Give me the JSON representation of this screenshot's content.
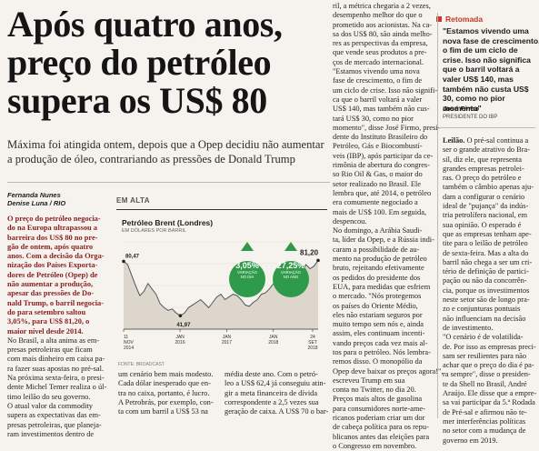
{
  "headline": [
    "Após quatro anos,",
    "preço do petróleo",
    "supera os US$ 80"
  ],
  "deck": [
    "Máxima foi atingida ontem, depois que a Opep decidiu não aumentar",
    "a produção de óleo, contrariando as pressões de Donald Trump"
  ],
  "byline": {
    "authors": [
      "Fernanda Nunes",
      "Denise Luna / RIO"
    ],
    "org": ""
  },
  "col1_lead": [
    "O preço do petróleo negocia-",
    "do na Europa ultrapassou a",
    "barreira dos US$ 80 no pre-",
    "gão de ontem, após quatro",
    "anos. Com a decisão da Orga-",
    "nização dos Países Exporta-",
    "dores de Petróleo (Opep) de",
    "não aumentar a produção,",
    "apesar das pressões de Do-",
    "nald Trump, o barril negocia-",
    "do para setembro saltou",
    "3,05%, para US$ 81,20, o",
    "maior nível desde 2014."
  ],
  "col1_body": [
    "No Brasil, a alta anima as em-",
    "presas petroleiras que ficam",
    "com mais dinheiro em caixa pa-",
    "ra fazer suas apostas no pré-sal.",
    "Na próxima sexta-feira, o presi-",
    "dente Michel Temer realiza o úl-",
    "timo leilão do seu governo.",
    "O atual valor da commodity",
    "supera as expectativas das em-",
    "presas petroleiras, que planeja-",
    "ram investimentos dentro de"
  ],
  "col2_bottom": [
    "um cenário bem mais modesto.",
    "Cada dólar inesperado que en-",
    "tra no caixa, portanto, é lucro.",
    "A Petrobrás, por exemplo, con-",
    "ta com um barril a US$ 53 na"
  ],
  "col3_bottom": [
    "média deste ano. Com o petró-",
    "leo a US$ 62,4 já conseguiu atin-",
    "gir a meta financeira de dívida",
    "correspondente a 2,5 vezes sua",
    "geração de caixa. A US$ 70 o bar-"
  ],
  "col3": [
    "ril, a métrica chegaria a 2 vezes,",
    "desempenho melhor do que o",
    "prometido aos acionistas. Na ca-",
    "sa dos US$ 80, são ainda melho-",
    "res as perspectivas da empresa,",
    "que vende seus produtos a pre-",
    "ços de mercado internacional.",
    "\"Estamos vivendo uma nova",
    "fase de crescimento, o fim de",
    "um ciclo de crise. Isso não signifi-",
    "ca que o barril voltará a valer",
    "US$ 140, mas também não cus-",
    "tará US$ 30, como no pior",
    "momento\", disse José Firmo, presi-",
    "dente do Instituto Brasileiro do",
    "Petróleo, Gás e Biocombustí-",
    "veis (IBP), após participar da ce-",
    "rimônia de abertura do congres-",
    "so Rio Oil & Gas, o maior do",
    "setor realizado no Brasil. Ele",
    "lembra que, até 2014, o petróleo",
    "era comumente negociado a",
    "mais de US$ 100. Em seguida,",
    "despencou.",
    "No domingo, a Arábia Saudi-",
    "ta, líder da Opep, e a Rússia indi-",
    "caram a possibilidade de au-",
    "mento na produção de petróleo",
    "bruto, rejeitando efetivamente",
    "os pedidos do presidente dos",
    "EUA, para medidas que esfriem",
    "o mercado. \"Nós protegemos",
    "os países do Oriente Médio,",
    "eles não estariam seguros por",
    "muito tempo sem nós e, ainda",
    "assim, eles continuam incenti-",
    "vando preços cada vez mais al-",
    "tos para o petróleo. Nós lembra-",
    "remos disso. O monopólio da",
    "Opep deve baixar os preços agora!\",",
    "escreveu Trump em sua",
    "conta no Twitter, no dia 20.",
    "Preços mais altos de gasolina",
    "para consumidores norte-ame-",
    "ricanos poderiam criar um dor",
    "de cabeça política para os repu-",
    "blicanos antes das eleições para",
    "o Congresso em novembro."
  ],
  "col4": [
    "Leilão. O pré-sal continua a",
    "ser o grande atrativo do Bra-",
    "sil, diz ele, que representa",
    "grandes empresas petrolei-",
    "ras. O preço do petróleo e",
    "também o câmbio apenas aju-",
    "dam a configurar o cenário",
    "ideal de \"pujança\" da indús-",
    "tria petrolífera nacional, em",
    "sua opinião. O esperado é",
    "que as empresas tenham ape-",
    "tite para o leilão de petróleo",
    "de sexta-feira. Mas a alta do",
    "barril não chega a ser um cri-",
    "tério de definição de partici-",
    "pação ou não da concorrên-",
    "cia, porque os investimentos",
    "neste setor são de longo pra-",
    "zo e conjunturas pontuais",
    "não influenciam na decisão",
    "de investimento.",
    "\"O cenário é de volatilida-",
    "de. Por isso as empresas preci-",
    "sam ser resilientes para não",
    "achar que o preço do dia é pa-",
    "ra sempre\", disse o presiden-",
    "te da Shell no Brasil, André",
    "Araújo. Ele disse que a empre-",
    "sa vai participar da 5.ª Rodada",
    "de Pré-sal e afirmou não te-",
    "mer interferências políticas",
    "no setor com a mudança de",
    "governo em 2019."
  ],
  "sidebar": {
    "tag": "Retomada",
    "quote": [
      "\"Estamos vivendo uma",
      "nova fase de crescimento,",
      "o fim de um ciclo de",
      "crise. Isso não significa",
      "que o barril voltará a",
      "valer US$ 140, mas",
      "também não custa US$",
      "30, como no pior",
      "momento\""
    ],
    "author": "José Firmo",
    "role": "PRESIDENTE DO IBP"
  },
  "chart_data": {
    "type": "line",
    "section": "EM ALTA",
    "title": "Petróleo Brent (Londres)",
    "ylabel": "EM DÓLARES POR BARRIL",
    "source": "FONTE: BROADCAST",
    "x_ticks": [
      {
        "label": "11",
        "sub": "NOV",
        "year": "2014"
      },
      {
        "label": "JAN",
        "sub": "2016",
        "year": ""
      },
      {
        "label": "JAN",
        "sub": "2017",
        "year": ""
      },
      {
        "label": "JAN",
        "sub": "2018",
        "year": ""
      },
      {
        "label": "24",
        "sub": "SET",
        "year": "2018"
      }
    ],
    "start_value": "80,47",
    "min_value": "41,97",
    "end_value": "81,20",
    "ylim": [
      30,
      95
    ],
    "values": [
      80.5,
      78,
      70,
      62,
      55,
      58,
      64,
      60,
      56,
      49,
      46,
      44,
      45,
      42,
      40,
      42,
      46,
      48,
      50,
      52,
      49,
      46,
      50,
      54,
      56,
      52,
      54,
      56,
      55,
      52,
      48,
      47,
      50,
      52,
      56,
      57,
      60,
      64,
      68,
      70,
      66,
      70,
      74,
      76,
      73,
      78,
      75,
      77,
      81.2
    ],
    "badges": [
      {
        "pct": "3,05%",
        "caption": [
          "VARIAÇÃO",
          "NO DIA"
        ]
      },
      {
        "pct": "27,25%",
        "caption": [
          "VARIAÇÃO",
          "NO ANO"
        ]
      }
    ]
  }
}
